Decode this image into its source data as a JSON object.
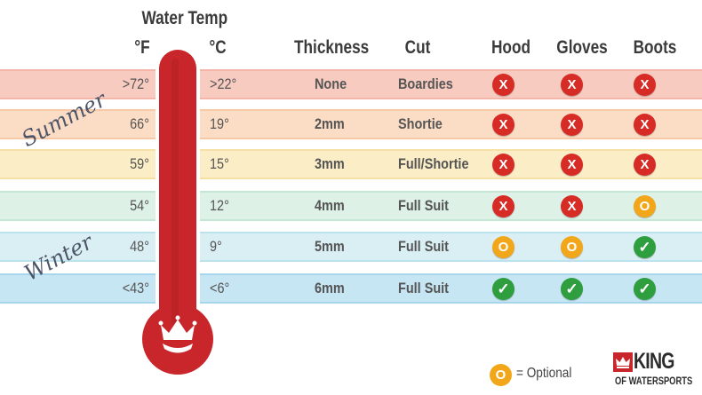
{
  "header": {
    "water_temp": "Water Temp",
    "f": "°F",
    "c": "°C",
    "thickness": "Thickness",
    "cut": "Cut",
    "hood": "Hood",
    "gloves": "Gloves",
    "boots": "Boots"
  },
  "seasons": {
    "summer": "Summer",
    "winter": "Winter"
  },
  "rows": [
    {
      "f": ">72°",
      "c": ">22°",
      "thickness": "None",
      "cut": "Boardies",
      "hood": "X",
      "gloves": "X",
      "boots": "X",
      "band": "#f7cbc0",
      "stripe": "#f3b6a8"
    },
    {
      "f": "66°",
      "c": "19°",
      "thickness": "2mm",
      "cut": "Shortie",
      "hood": "X",
      "gloves": "X",
      "boots": "X",
      "band": "#fbdcc5",
      "stripe": "#f7c9a6"
    },
    {
      "f": "59°",
      "c": "15°",
      "thickness": "3mm",
      "cut": "Full/Shortie",
      "hood": "X",
      "gloves": "X",
      "boots": "X",
      "band": "#fbedc6",
      "stripe": "#f6e0a4"
    },
    {
      "f": "54°",
      "c": "12°",
      "thickness": "4mm",
      "cut": "Full Suit",
      "hood": "X",
      "gloves": "X",
      "boots": "O",
      "band": "#ddf1e6",
      "stripe": "#c2e7d4"
    },
    {
      "f": "48°",
      "c": "9°",
      "thickness": "5mm",
      "cut": "Full Suit",
      "hood": "O",
      "gloves": "O",
      "boots": "✓",
      "band": "#daeff4",
      "stripe": "#bce3ed"
    },
    {
      "f": "<43°",
      "c": "<6°",
      "thickness": "6mm",
      "cut": "Full Suit",
      "hood": "✓",
      "gloves": "✓",
      "boots": "✓",
      "band": "#c7e6f3",
      "stripe": "#a6d6ec"
    }
  ],
  "legend": {
    "symbol": "O",
    "text": "= Optional"
  },
  "logo": {
    "brand": "KING",
    "sub": "OF WATERSPORTS"
  },
  "colors": {
    "no": "#d72b26",
    "optional": "#f2a71b",
    "yes": "#2e9e3f",
    "thermometer": "#c8262b"
  }
}
